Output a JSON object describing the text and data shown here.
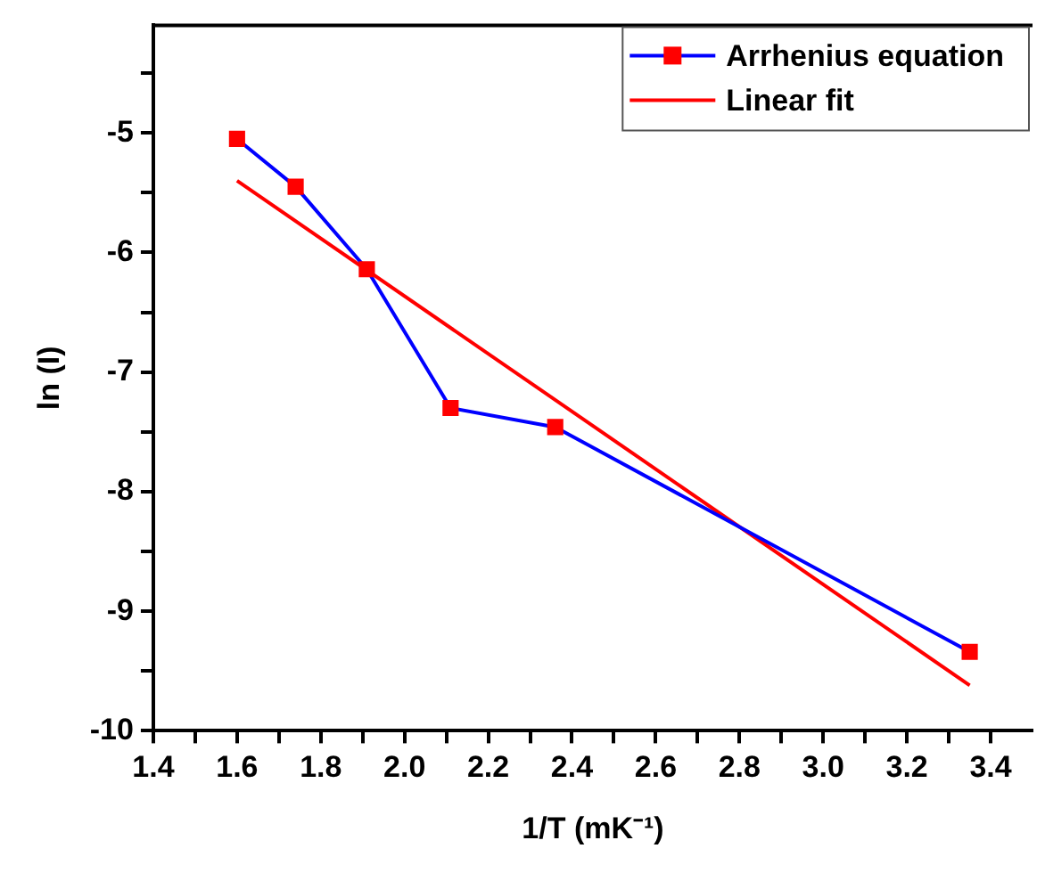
{
  "chart_data": {
    "type": "line",
    "xlabel": "1/T (mK⁻¹)",
    "ylabel": "ln (I)",
    "xlim": [
      1.4,
      3.5
    ],
    "ylim": [
      -10,
      -4.1
    ],
    "xticks": [
      1.4,
      {
        "value": 1.5,
        "label": null
      },
      1.6,
      {
        "value": 1.7,
        "label": null
      },
      1.8,
      {
        "value": 1.9,
        "label": null
      },
      {
        "value": 2,
        "label": "2.0"
      },
      {
        "value": 2.1,
        "label": null
      },
      2.2,
      {
        "value": 2.3,
        "label": null
      },
      2.4,
      {
        "value": 2.5,
        "label": null
      },
      2.6,
      {
        "value": 2.7,
        "label": null
      },
      2.8,
      {
        "value": 2.9,
        "label": null
      },
      {
        "value": 3,
        "label": "3.0"
      },
      {
        "value": 3.1,
        "label": null
      },
      3.2,
      {
        "value": 3.3,
        "label": null
      },
      3.4
    ],
    "yticks": [
      -10,
      {
        "value": -9.5,
        "label": null
      },
      -9,
      {
        "value": -8.5,
        "label": null
      },
      -8,
      {
        "value": -7.5,
        "label": null
      },
      -7,
      {
        "value": -6.5,
        "label": null
      },
      -6,
      {
        "value": -5.5,
        "label": null
      },
      -5,
      {
        "value": -4.5,
        "label": null
      }
    ],
    "legend": "top right",
    "grid": false,
    "series": [
      {
        "name": "Arrhenius equation",
        "color": "#0000ff",
        "colors": [
          "#ff0000",
          "#ff0000",
          "#ff0000",
          "#ff0000",
          "#ff0000",
          "#ff0000"
        ],
        "marker": "square",
        "x": [
          1.6,
          1.74,
          1.91,
          2.11,
          2.36,
          3.35
        ],
        "values": [
          -5.05,
          -5.45,
          -6.14,
          -7.3,
          -7.46,
          -9.34
        ]
      },
      {
        "name": "Linear fit",
        "color": "#ff0000",
        "marker": "none",
        "x": [
          1.6,
          3.35
        ],
        "values": [
          -5.4,
          -9.62
        ]
      }
    ]
  }
}
